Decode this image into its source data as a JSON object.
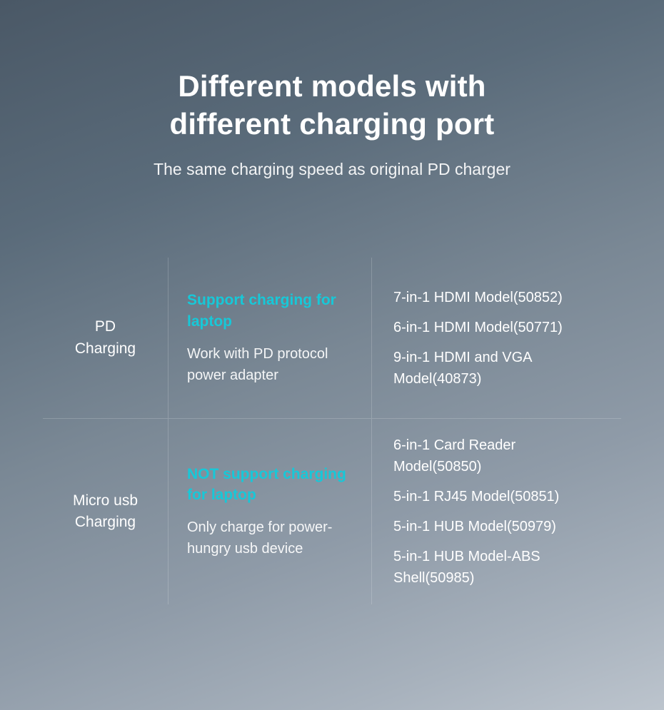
{
  "title_line1": "Different models with",
  "title_line2": "different charging port",
  "subtitle": "The same charging speed as original PD charger",
  "colors": {
    "highlight": "#17c8d8",
    "text": "#ffffff",
    "divider": "rgba(255,255,255,0.18)",
    "bg_gradient_start": "#4a5866",
    "bg_gradient_end": "#bcc4cd"
  },
  "typography": {
    "title_fontsize": 42,
    "subtitle_fontsize": 23,
    "body_fontsize": 20,
    "highlight_fontsize": 21,
    "label_fontsize": 21
  },
  "table": {
    "rows": [
      {
        "label_line1": "PD",
        "label_line2": "Charging",
        "highlight": "Support charging for laptop",
        "desc": "Work with PD protocol power adapter",
        "models": [
          "7-in-1 HDMI Model(50852)",
          "6-in-1 HDMI Model(50771)",
          "9-in-1 HDMI and VGA Model(40873)"
        ]
      },
      {
        "label_line1": "Micro usb",
        "label_line2": "Charging",
        "highlight": "NOT support charging for laptop",
        "desc": "Only charge for power-hungry usb device",
        "models": [
          "6-in-1 Card Reader Model(50850)",
          "5-in-1 RJ45 Model(50851)",
          "5-in-1 HUB Model(50979)",
          "5-in-1 HUB Model-ABS Shell(50985)"
        ]
      }
    ]
  }
}
